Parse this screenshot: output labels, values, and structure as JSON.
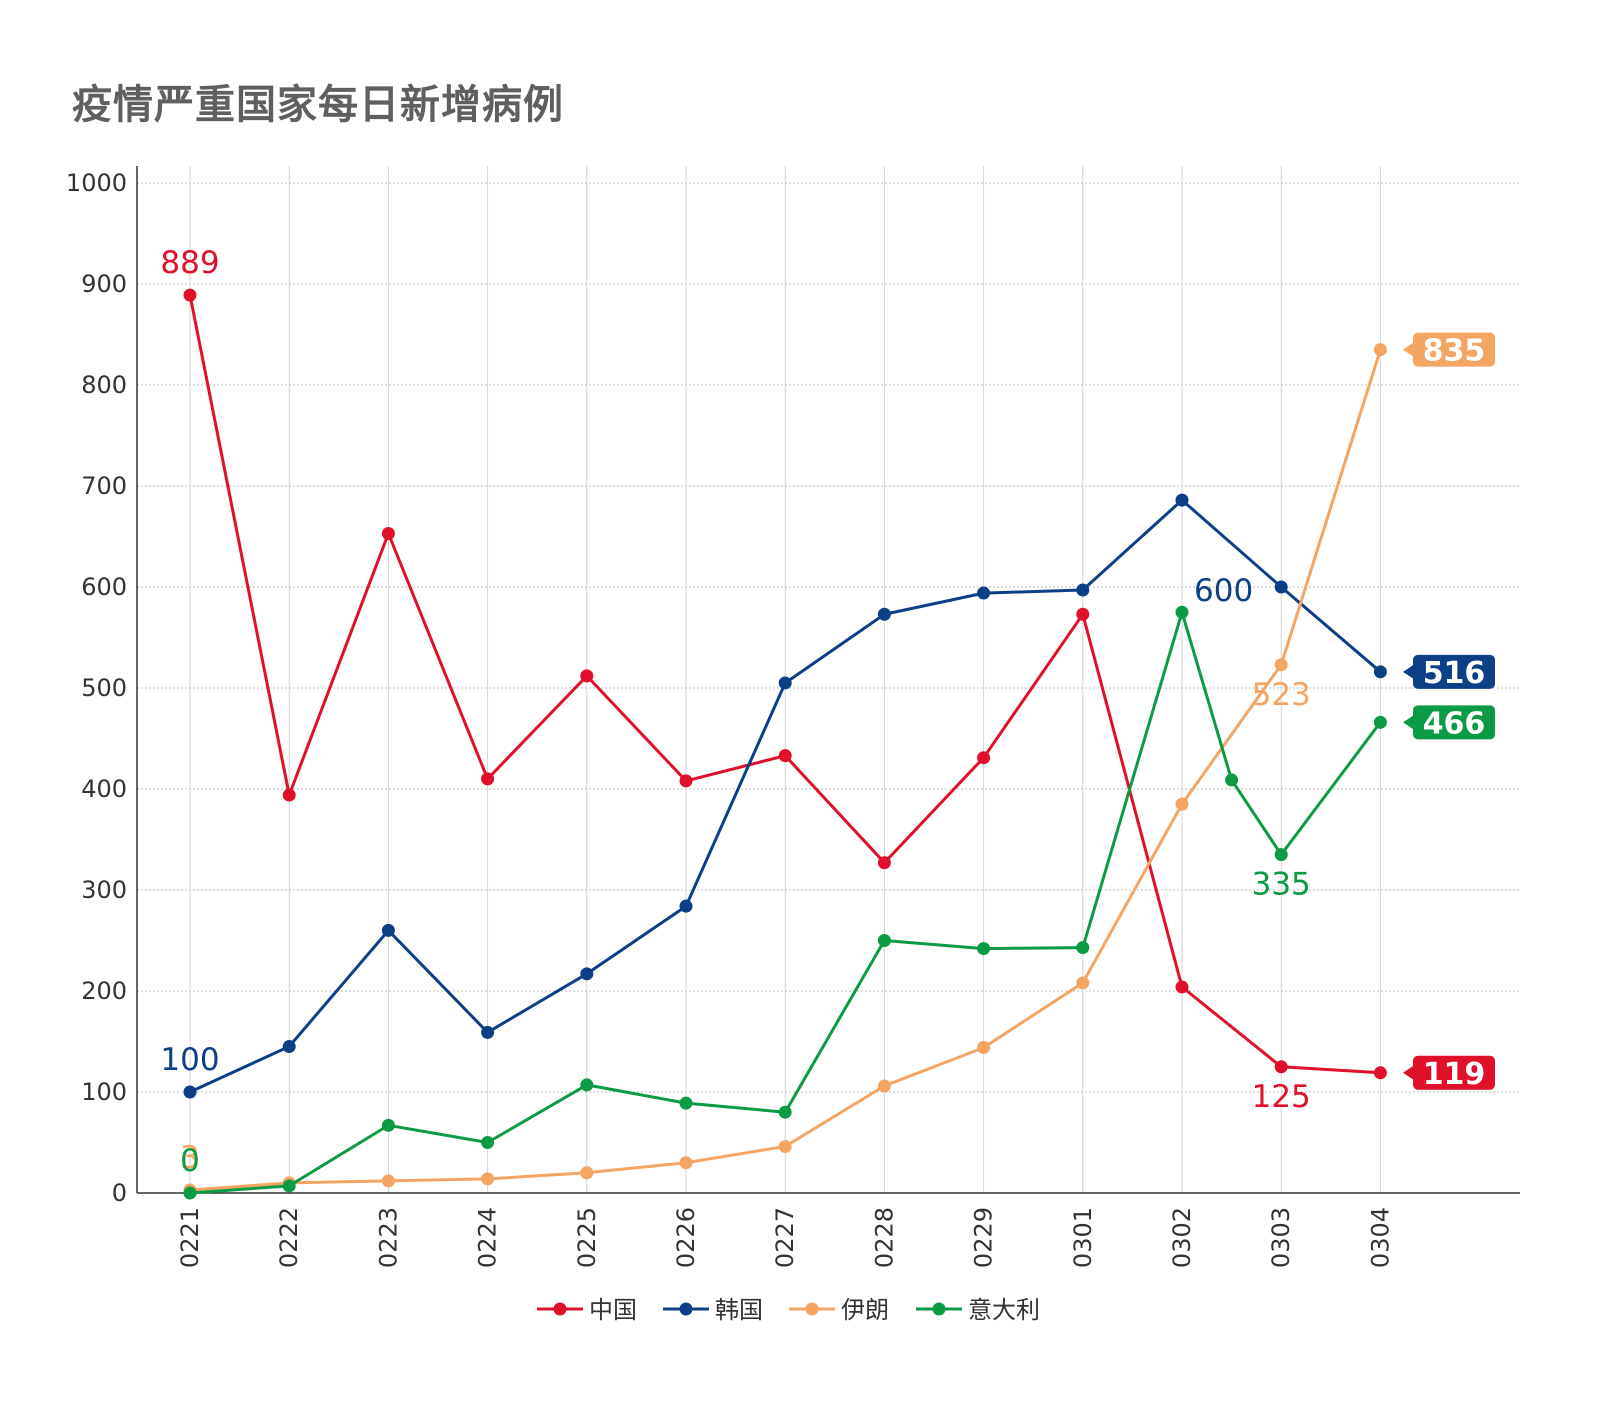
{
  "title": "疫情严重国家每日新增病例",
  "colors": {
    "grid": "#bdbdbd",
    "axis": "#333333",
    "text": "#333333",
    "title": "#5f5f5f"
  },
  "chart_data": {
    "type": "line",
    "title": "疫情严重国家每日新增病例",
    "xlabel": "",
    "ylabel": "",
    "x": [
      "0221",
      "0222",
      "0223",
      "0224",
      "0225",
      "0226",
      "0227",
      "0228",
      "0229",
      "0301",
      "0302",
      "0303",
      "0304"
    ],
    "ylim": [
      0,
      1000
    ],
    "yticks": [
      "0",
      "100",
      "200",
      "300",
      "400",
      "500",
      "600",
      "700",
      "800",
      "900",
      "1000"
    ],
    "grid": true,
    "legend_position": "bottom-center",
    "series": [
      {
        "name": "中国",
        "color": "#e0102a",
        "values": [
          889,
          394,
          653,
          410,
          512,
          408,
          433,
          327,
          431,
          573,
          204,
          125,
          119
        ],
        "labels": [
          {
            "index": 0,
            "text": "889",
            "pos": "above"
          },
          {
            "index": 11,
            "text": "125",
            "pos": "below"
          }
        ],
        "end_label": "119"
      },
      {
        "name": "韩国",
        "color": "#0d3f87",
        "values": [
          100,
          145,
          260,
          159,
          217,
          284,
          505,
          573,
          594,
          597,
          686,
          600,
          516
        ],
        "labels": [
          {
            "index": 0,
            "text": "100",
            "pos": "above"
          },
          {
            "index": 11,
            "text": "600",
            "pos": "left"
          }
        ],
        "end_label": "516"
      },
      {
        "name": "伊朗",
        "color": "#f4a563",
        "values": [
          3,
          10,
          12,
          14,
          20,
          30,
          46,
          106,
          144,
          208,
          385,
          523,
          835
        ],
        "labels": [
          {
            "index": 0,
            "text": "3",
            "pos": "above"
          },
          {
            "index": 11,
            "text": "523",
            "pos": "below"
          }
        ],
        "end_label": "835"
      },
      {
        "name": "意大利",
        "color": "#0c9a45",
        "values": [
          0,
          7,
          67,
          50,
          107,
          89,
          80,
          250,
          242,
          243,
          575,
          335,
          466
        ],
        "extra_points": [
          {
            "x": 10.5,
            "y": 409
          }
        ],
        "labels": [
          {
            "index": 0,
            "text": "0",
            "pos": "above"
          },
          {
            "index": 11,
            "text": "335",
            "pos": "below"
          }
        ],
        "end_label": "466"
      }
    ]
  }
}
